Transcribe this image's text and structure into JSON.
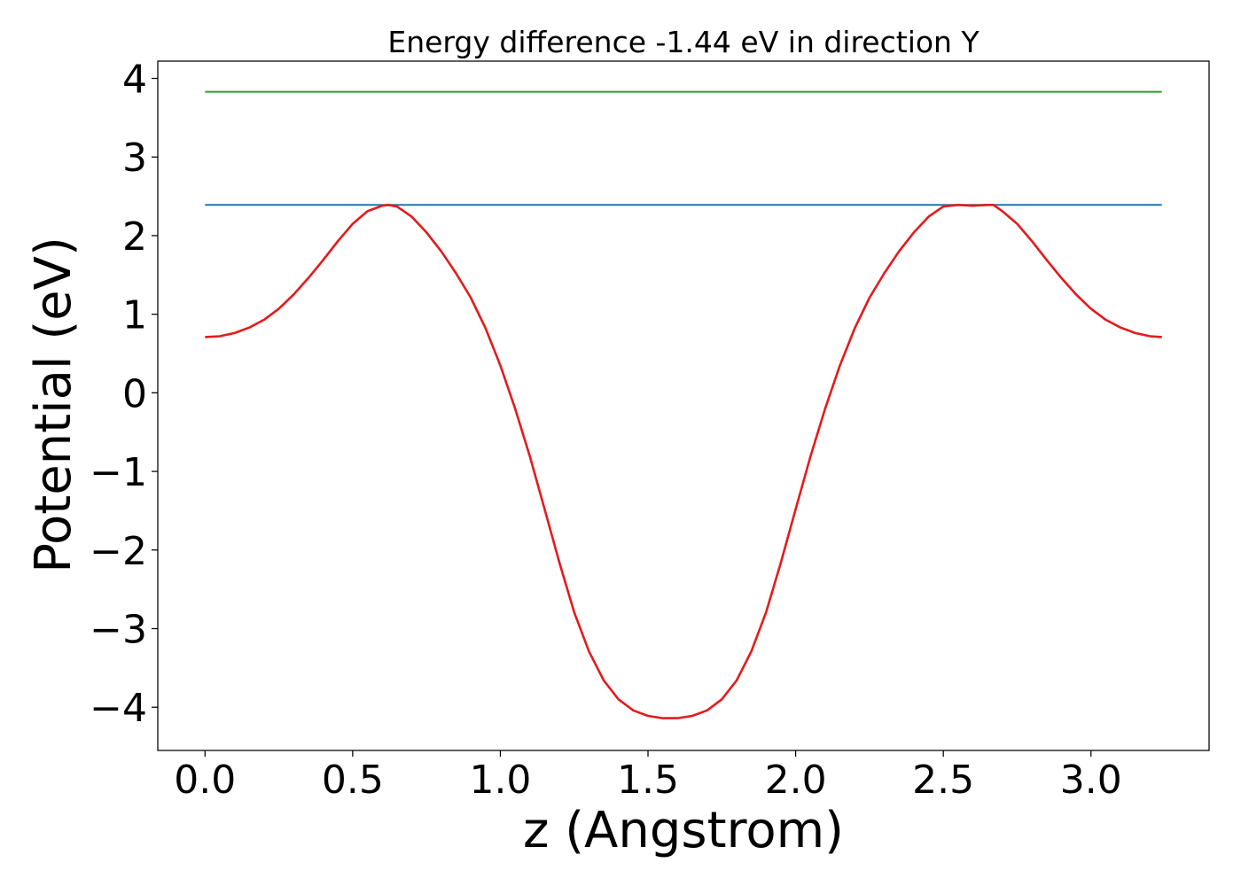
{
  "chart_data": {
    "type": "line",
    "title": "Energy difference -1.44 eV in direction Y",
    "xlabel": "z (Angstrom)",
    "ylabel": "Potential (eV)",
    "xlim": [
      -0.16,
      3.4
    ],
    "ylim": [
      -4.55,
      4.22
    ],
    "xticks": [
      0.0,
      0.5,
      1.0,
      1.5,
      2.0,
      2.5,
      3.0
    ],
    "xtick_labels": [
      "0.0",
      "0.5",
      "1.0",
      "1.5",
      "2.0",
      "2.5",
      "3.0"
    ],
    "yticks": [
      4,
      3,
      2,
      1,
      0,
      -1,
      -2,
      -3,
      -4
    ],
    "ytick_labels": [
      "4",
      "3",
      "2",
      "1",
      "0",
      "−1",
      "−2",
      "−3",
      "−4"
    ],
    "grid": false,
    "series": [
      {
        "color": "#2ca02c",
        "x": [
          0.0,
          3.24
        ],
        "y": [
          3.83,
          3.83
        ]
      },
      {
        "color": "#1f77b4",
        "x": [
          0.0,
          3.24
        ],
        "y": [
          2.39,
          2.39
        ]
      },
      {
        "color": "#e41a1c",
        "x": [
          0.0,
          0.05,
          0.1,
          0.15,
          0.2,
          0.25,
          0.3,
          0.35,
          0.4,
          0.45,
          0.5,
          0.55,
          0.6,
          0.62,
          0.65,
          0.7,
          0.75,
          0.8,
          0.85,
          0.9,
          0.95,
          1.0,
          1.05,
          1.1,
          1.15,
          1.2,
          1.25,
          1.3,
          1.35,
          1.4,
          1.45,
          1.5,
          1.55,
          1.6,
          1.65,
          1.7,
          1.75,
          1.8,
          1.85,
          1.9,
          1.95,
          2.0,
          2.05,
          2.1,
          2.15,
          2.2,
          2.25,
          2.3,
          2.35,
          2.4,
          2.45,
          2.5,
          2.55,
          2.6,
          2.65,
          2.67,
          2.7,
          2.75,
          2.8,
          2.85,
          2.9,
          2.95,
          3.0,
          3.05,
          3.1,
          3.15,
          3.2,
          3.24
        ],
        "y": [
          0.71,
          0.72,
          0.76,
          0.83,
          0.93,
          1.07,
          1.25,
          1.46,
          1.69,
          1.93,
          2.15,
          2.31,
          2.38,
          2.39,
          2.37,
          2.24,
          2.04,
          1.8,
          1.52,
          1.21,
          0.82,
          0.35,
          -0.2,
          -0.81,
          -1.48,
          -2.16,
          -2.79,
          -3.29,
          -3.66,
          -3.9,
          -4.04,
          -4.11,
          -4.14,
          -4.14,
          -4.11,
          -4.04,
          -3.9,
          -3.66,
          -3.29,
          -2.79,
          -2.16,
          -1.48,
          -0.81,
          -0.2,
          0.35,
          0.82,
          1.21,
          1.52,
          1.8,
          2.04,
          2.24,
          2.37,
          2.39,
          2.38,
          2.39,
          2.39,
          2.31,
          2.15,
          1.93,
          1.69,
          1.46,
          1.25,
          1.07,
          0.93,
          0.83,
          0.76,
          0.72,
          0.71
        ]
      }
    ]
  }
}
